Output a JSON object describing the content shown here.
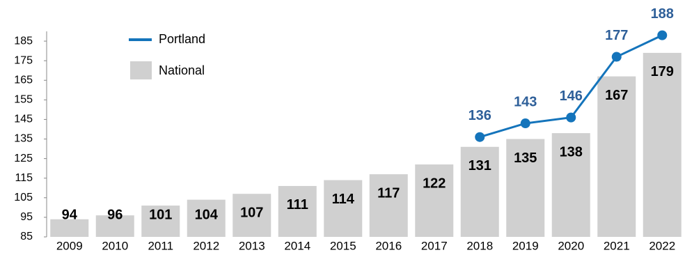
{
  "chart_data": {
    "type": "bar-line",
    "categories": [
      "2009",
      "2010",
      "2011",
      "2012",
      "2013",
      "2014",
      "2015",
      "2016",
      "2017",
      "2018",
      "2019",
      "2020",
      "2021",
      "2022"
    ],
    "series": [
      {
        "name": "National",
        "type": "bar",
        "color": "#d0d0d0",
        "values": [
          94,
          96,
          101,
          104,
          107,
          111,
          114,
          117,
          122,
          131,
          135,
          138,
          167,
          179
        ]
      },
      {
        "name": "Portland",
        "type": "line",
        "color": "#1474bb",
        "label_color": "#2e5f99",
        "values": [
          null,
          null,
          null,
          null,
          null,
          null,
          null,
          null,
          null,
          136,
          143,
          146,
          177,
          188
        ]
      }
    ],
    "ylim": [
      85,
      190
    ],
    "yticks": [
      85,
      95,
      105,
      115,
      125,
      135,
      145,
      155,
      165,
      175,
      185
    ],
    "grid": false
  }
}
